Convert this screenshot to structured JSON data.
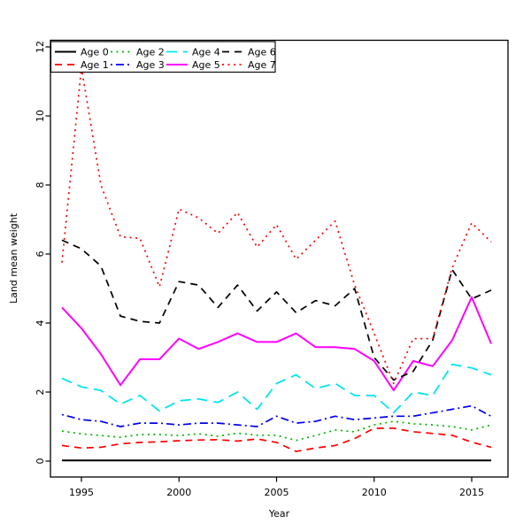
{
  "figure": {
    "xlabel": "Year",
    "ylabel": "Land mean weight"
  },
  "chart_data": {
    "type": "line",
    "title": "",
    "xlabel": "Year",
    "ylabel": "Land mean weight",
    "grid": false,
    "legend_position": "top-left",
    "legend_rows": 2,
    "xlim": [
      1993.4,
      2016.9
    ],
    "ylim": [
      -0.45,
      12.2
    ],
    "x_ticks": [
      1995,
      2000,
      2005,
      2010,
      2015
    ],
    "y_ticks": [
      0,
      2,
      4,
      6,
      8,
      10,
      12
    ],
    "x": [
      1994,
      1995,
      1996,
      1997,
      1998,
      1999,
      2000,
      2001,
      2002,
      2003,
      2004,
      2005,
      2006,
      2007,
      2008,
      2009,
      2010,
      2011,
      2012,
      2013,
      2014,
      2015,
      2016
    ],
    "series": [
      {
        "name": "Age 0",
        "color": "#000000",
        "dash": "solid",
        "width": 2.0,
        "values": [
          0.02,
          0.02,
          0.02,
          0.02,
          0.02,
          0.02,
          0.02,
          0.02,
          0.02,
          0.02,
          0.02,
          0.02,
          0.02,
          0.02,
          0.02,
          0.02,
          0.02,
          0.02,
          0.02,
          0.02,
          0.02,
          0.02,
          0.02
        ]
      },
      {
        "name": "Age 1",
        "color": "#ff0000",
        "dash": "dashed",
        "width": 1.7,
        "values": [
          0.45,
          0.38,
          0.4,
          0.5,
          0.54,
          0.56,
          0.59,
          0.61,
          0.62,
          0.58,
          0.64,
          0.54,
          0.28,
          0.38,
          0.45,
          0.65,
          0.95,
          0.95,
          0.85,
          0.8,
          0.75,
          0.55,
          0.4
        ]
      },
      {
        "name": "Age 2",
        "color": "#00b400",
        "dash": "dotted",
        "width": 1.7,
        "values": [
          0.87,
          0.79,
          0.74,
          0.69,
          0.77,
          0.77,
          0.74,
          0.79,
          0.72,
          0.81,
          0.75,
          0.75,
          0.6,
          0.74,
          0.9,
          0.85,
          1.05,
          1.15,
          1.08,
          1.05,
          1.0,
          0.9,
          1.05
        ]
      },
      {
        "name": "Age 3",
        "color": "#0000ee",
        "dash": "dashdot",
        "width": 1.7,
        "values": [
          1.35,
          1.2,
          1.15,
          1.0,
          1.1,
          1.1,
          1.05,
          1.1,
          1.1,
          1.05,
          1.0,
          1.3,
          1.1,
          1.15,
          1.3,
          1.2,
          1.25,
          1.3,
          1.3,
          1.4,
          1.5,
          1.6,
          1.3
        ]
      },
      {
        "name": "Age 4",
        "color": "#00e5ee",
        "dash": "longdash",
        "width": 1.8,
        "values": [
          2.4,
          2.15,
          2.05,
          1.65,
          1.9,
          1.45,
          1.75,
          1.8,
          1.7,
          2.0,
          1.5,
          2.25,
          2.5,
          2.1,
          2.25,
          1.9,
          1.9,
          1.4,
          2.0,
          1.9,
          2.8,
          2.7,
          2.5
        ]
      },
      {
        "name": "Age 5",
        "color": "#ff00ff",
        "dash": "solid",
        "width": 2.0,
        "values": [
          4.45,
          3.85,
          3.1,
          2.2,
          2.95,
          2.95,
          3.55,
          3.25,
          3.45,
          3.7,
          3.45,
          3.45,
          3.7,
          3.3,
          3.3,
          3.25,
          2.9,
          2.05,
          2.9,
          2.75,
          3.5,
          4.75,
          3.4
        ]
      },
      {
        "name": "Age 6",
        "color": "#000000",
        "dash": "dashed",
        "width": 1.7,
        "values": [
          6.4,
          6.15,
          5.65,
          4.2,
          4.05,
          4.0,
          5.2,
          5.1,
          4.45,
          5.1,
          4.35,
          4.9,
          4.3,
          4.65,
          4.5,
          5.0,
          3.0,
          2.35,
          2.6,
          3.5,
          5.55,
          4.7,
          4.95
        ]
      },
      {
        "name": "Age 7",
        "color": "#ff0000",
        "dash": "dotted",
        "width": 1.7,
        "values": [
          5.75,
          11.4,
          8.0,
          6.5,
          6.45,
          5.05,
          7.3,
          7.05,
          6.6,
          7.2,
          6.2,
          6.85,
          5.85,
          6.4,
          6.95,
          5.1,
          3.7,
          2.25,
          3.55,
          3.55,
          5.6,
          6.9,
          6.35
        ]
      }
    ]
  }
}
